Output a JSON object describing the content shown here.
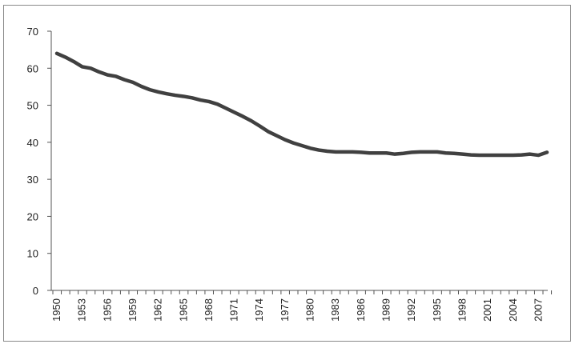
{
  "chart_data": {
    "type": "line",
    "title": "",
    "xlabel": "",
    "ylabel": "",
    "ylim": [
      0,
      70
    ],
    "y_ticks": [
      0,
      10,
      20,
      30,
      40,
      50,
      60,
      70
    ],
    "x_tick_labels": [
      "1950",
      "1953",
      "1956",
      "1959",
      "1962",
      "1965",
      "1968",
      "1971",
      "1974",
      "1977",
      "1980",
      "1983",
      "1986",
      "1989",
      "1992",
      "1995",
      "1998",
      "2001",
      "2004",
      "2007"
    ],
    "grid": false,
    "legend": "none",
    "series": [
      {
        "color": "#404040",
        "x": [
          1950,
          1951,
          1952,
          1953,
          1954,
          1955,
          1956,
          1957,
          1958,
          1959,
          1960,
          1961,
          1962,
          1963,
          1964,
          1965,
          1966,
          1967,
          1968,
          1969,
          1970,
          1971,
          1972,
          1973,
          1974,
          1975,
          1976,
          1977,
          1978,
          1979,
          1980,
          1981,
          1982,
          1983,
          1984,
          1985,
          1986,
          1987,
          1988,
          1989,
          1990,
          1991,
          1992,
          1993,
          1994,
          1995,
          1996,
          1997,
          1998,
          1999,
          2000,
          2001,
          2002,
          2003,
          2004,
          2005,
          2006,
          2007,
          2008
        ],
        "values": [
          64,
          63,
          61.8,
          60.4,
          60,
          59,
          58.2,
          57.8,
          56.9,
          56.2,
          55.1,
          54.2,
          53.6,
          53.1,
          52.7,
          52.4,
          52,
          51.4,
          51,
          50.3,
          49.2,
          48.1,
          47,
          45.8,
          44.4,
          42.9,
          41.8,
          40.7,
          39.8,
          39.1,
          38.4,
          37.9,
          37.6,
          37.4,
          37.4,
          37.4,
          37.3,
          37.1,
          37.1,
          37.1,
          36.8,
          37,
          37.3,
          37.4,
          37.4,
          37.4,
          37.1,
          37,
          36.8,
          36.6,
          36.5,
          36.5,
          36.5,
          36.5,
          36.5,
          36.6,
          36.8,
          36.5,
          37.3
        ]
      }
    ]
  }
}
